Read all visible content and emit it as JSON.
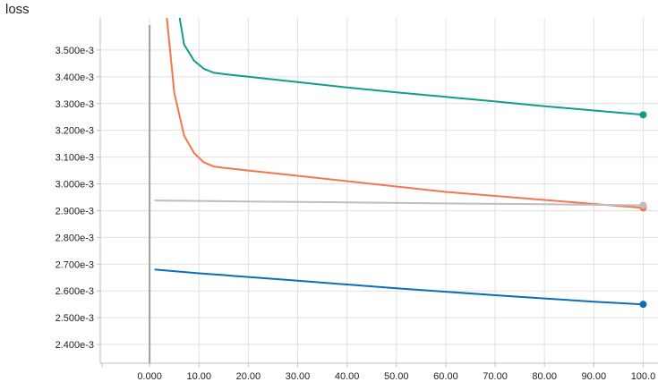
{
  "chart_data": {
    "type": "line",
    "title": "loss",
    "xlabel": "",
    "ylabel": "",
    "xlim": [
      -10,
      103
    ],
    "ylim": [
      2.33,
      3.62
    ],
    "x_ticks": [
      0,
      10,
      20,
      30,
      40,
      50,
      60,
      70,
      80,
      90,
      100
    ],
    "x_tick_labels": [
      "0.000",
      "10.00",
      "20.00",
      "30.00",
      "40.00",
      "50.00",
      "60.00",
      "70.00",
      "80.00",
      "90.00",
      "100.0"
    ],
    "y_ticks": [
      2.4,
      2.5,
      2.6,
      2.7,
      2.8,
      2.9,
      3.0,
      3.1,
      3.2,
      3.3,
      3.4,
      3.5
    ],
    "y_tick_labels": [
      "2.400e-3",
      "2.500e-3",
      "2.600e-3",
      "2.700e-3",
      "2.800e-3",
      "2.900e-3",
      "3.000e-3",
      "3.100e-3",
      "3.200e-3",
      "3.300e-3",
      "3.400e-3",
      "3.500e-3"
    ],
    "grid": true,
    "series": [
      {
        "color": "#0f9d8a",
        "x": [
          6,
          7,
          9,
          11,
          13,
          15,
          20,
          30,
          40,
          50,
          60,
          70,
          80,
          90,
          100
        ],
        "y": [
          3.63,
          3.52,
          3.46,
          3.43,
          3.415,
          3.41,
          3.4,
          3.38,
          3.36,
          3.342,
          3.325,
          3.308,
          3.29,
          3.274,
          3.258
        ]
      },
      {
        "color": "#f4774c",
        "x": [
          3.5,
          5,
          7,
          9,
          11,
          13,
          15,
          20,
          30,
          40,
          50,
          60,
          70,
          80,
          90,
          100
        ],
        "y": [
          3.62,
          3.34,
          3.18,
          3.115,
          3.08,
          3.065,
          3.06,
          3.05,
          3.03,
          3.01,
          2.99,
          2.97,
          2.955,
          2.94,
          2.925,
          2.91
        ]
      },
      {
        "color": "#bdbdbd",
        "x": [
          1,
          20,
          40,
          60,
          80,
          100
        ],
        "y": [
          2.938,
          2.934,
          2.931,
          2.927,
          2.924,
          2.92
        ]
      },
      {
        "color": "#0a6fb8",
        "x": [
          1,
          10,
          20,
          30,
          40,
          50,
          60,
          70,
          80,
          90,
          100
        ],
        "y": [
          2.68,
          2.666,
          2.652,
          2.638,
          2.624,
          2.61,
          2.597,
          2.584,
          2.572,
          2.56,
          2.55
        ]
      }
    ]
  }
}
